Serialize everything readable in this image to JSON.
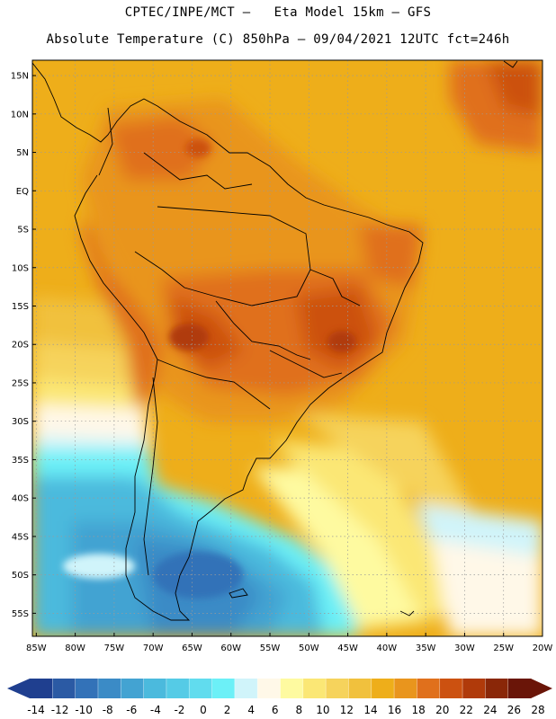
{
  "header": {
    "line1": "CPTEC/INPE/MCT –   Eta Model 15km – GFS",
    "line2": "Absolute Temperature (C) 850hPa – 09/04/2021 12UTC fct=246h"
  },
  "map": {
    "lat_labels": [
      "15N",
      "10N",
      "5N",
      "EQ",
      "5S",
      "10S",
      "15S",
      "20S",
      "25S",
      "30S",
      "35S",
      "40S",
      "45S",
      "50S",
      "55S"
    ],
    "lon_labels": [
      "85W",
      "80W",
      "75W",
      "70W",
      "65W",
      "60W",
      "55W",
      "50W",
      "45W",
      "40W",
      "35W",
      "30W",
      "25W",
      "20W"
    ],
    "lat_range": [
      17,
      -58
    ],
    "lon_range": [
      -85.5,
      -20
    ]
  },
  "colorbar": {
    "labels": [
      "-14",
      "-12",
      "-10",
      "-8",
      "-6",
      "-4",
      "-2",
      "0",
      "2",
      "4",
      "6",
      "8",
      "10",
      "12",
      "14",
      "16",
      "18",
      "20",
      "22",
      "24",
      "26",
      "28"
    ],
    "colors": [
      "#1f3f8f",
      "#2b5aa4",
      "#3372b8",
      "#3b8bc6",
      "#43a3d2",
      "#4bbadd",
      "#55cbe6",
      "#61dcee",
      "#6cf0f7",
      "#d0f4fa",
      "#fff8e8",
      "#fefaa0",
      "#fbe775",
      "#f6d35c",
      "#f1c13d",
      "#eeae1a",
      "#e9951d",
      "#e0701c",
      "#cc5110",
      "#b03a0a",
      "#8a2708",
      "#6a1508"
    ]
  }
}
